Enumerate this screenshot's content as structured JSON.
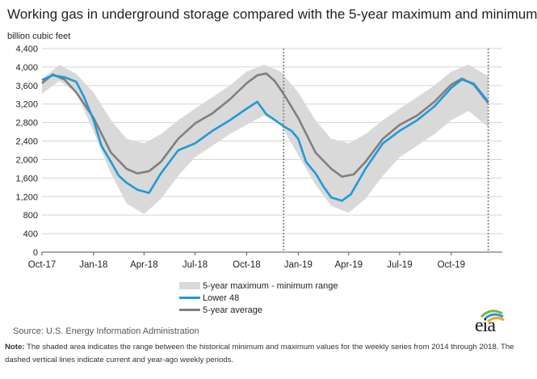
{
  "title": "Working gas in underground  storage compared with the 5-year maximum and minimum",
  "unit_label": "billion cubic feet",
  "source": "Source:  U.S. Energy Information Administration",
  "note_label": "Note:",
  "note_text": "The shaded area indicates the range between the historical minimum and maximum values for the weekly series from 2014 through 2018. The dashed vertical lines indicate current and year-ago weekly periods.",
  "logo_text": "eia",
  "colors": {
    "band": "#d9d9d9",
    "lower48": "#1f9ad6",
    "average": "#7f7f7f"
  },
  "chart_data": {
    "type": "area",
    "y_ticks": [
      "0",
      "400",
      "800",
      "1,200",
      "1,600",
      "2,000",
      "2,400",
      "2,800",
      "3,200",
      "3,600",
      "4,000",
      "4,400"
    ],
    "ylim": [
      0,
      4400
    ],
    "x_tick_labels": [
      "Oct-17",
      "Jan-18",
      "Apr-18",
      "Jul-18",
      "Oct-18",
      "Jan-19",
      "Apr-19",
      "Jul-19",
      "Oct-19"
    ],
    "x_tick_dates": [
      "2017-10-01",
      "2018-01-01",
      "2018-04-01",
      "2018-07-01",
      "2018-10-01",
      "2019-01-01",
      "2019-04-01",
      "2019-07-01",
      "2019-10-01"
    ],
    "xlim": [
      "2017-10-01",
      "2019-12-31"
    ],
    "dashed_lines": [
      "2018-12-06",
      "2019-12-06"
    ],
    "legend": [
      {
        "label": "5-year maximum - minimum range",
        "kind": "band"
      },
      {
        "label": "Lower 48",
        "kind": "line"
      },
      {
        "label": "5-year average",
        "kind": "line"
      }
    ],
    "range": {
      "dates": [
        "2017-10-01",
        "2017-11-01",
        "2017-12-01",
        "2018-01-01",
        "2018-02-01",
        "2018-03-01",
        "2018-04-01",
        "2018-05-01",
        "2018-06-01",
        "2018-07-01",
        "2018-08-01",
        "2018-09-01",
        "2018-10-01",
        "2018-11-01",
        "2018-12-01",
        "2019-01-01",
        "2019-02-01",
        "2019-03-01",
        "2019-04-01",
        "2019-05-01",
        "2019-06-01",
        "2019-07-01",
        "2019-08-01",
        "2019-09-01",
        "2019-10-01",
        "2019-11-01",
        "2019-12-06"
      ],
      "max": [
        3730,
        4050,
        3850,
        3450,
        2850,
        2450,
        2350,
        2550,
        2850,
        3100,
        3350,
        3600,
        3900,
        4050,
        3900,
        3450,
        2850,
        2450,
        2350,
        2550,
        2850,
        3100,
        3350,
        3600,
        3900,
        4050,
        3800
      ],
      "min": [
        3420,
        3700,
        3450,
        2600,
        1700,
        1050,
        820,
        1150,
        1650,
        2050,
        2300,
        2550,
        2750,
        2950,
        2750,
        2100,
        1450,
        1000,
        850,
        1150,
        1650,
        2050,
        2300,
        2550,
        2850,
        3050,
        2700
      ]
    },
    "series": [
      {
        "name": "Lower 48",
        "dates": [
          "2017-10-01",
          "2017-10-20",
          "2017-11-10",
          "2017-12-01",
          "2017-12-15",
          "2018-01-01",
          "2018-01-15",
          "2018-02-01",
          "2018-02-15",
          "2018-03-01",
          "2018-03-20",
          "2018-04-10",
          "2018-05-01",
          "2018-06-01",
          "2018-07-01",
          "2018-08-01",
          "2018-09-01",
          "2018-10-01",
          "2018-10-20",
          "2018-11-05",
          "2018-11-15",
          "2018-12-06",
          "2018-12-20",
          "2019-01-01",
          "2019-01-15",
          "2019-02-01",
          "2019-02-15",
          "2019-03-01",
          "2019-03-20",
          "2019-04-05",
          "2019-05-01",
          "2019-06-01",
          "2019-07-01",
          "2019-08-01",
          "2019-09-01",
          "2019-10-01",
          "2019-10-20",
          "2019-11-10",
          "2019-12-06"
        ],
        "values": [
          3720,
          3820,
          3780,
          3680,
          3350,
          2850,
          2300,
          1950,
          1650,
          1500,
          1350,
          1280,
          1700,
          2200,
          2350,
          2620,
          2850,
          3100,
          3250,
          2980,
          2900,
          2720,
          2620,
          2450,
          1950,
          1700,
          1420,
          1180,
          1110,
          1250,
          1800,
          2350,
          2620,
          2850,
          3150,
          3550,
          3730,
          3640,
          3250
        ]
      },
      {
        "name": "5-year average",
        "dates": [
          "2017-10-01",
          "2017-10-20",
          "2017-11-10",
          "2017-12-01",
          "2018-01-01",
          "2018-02-01",
          "2018-03-01",
          "2018-03-20",
          "2018-04-10",
          "2018-05-01",
          "2018-06-01",
          "2018-07-01",
          "2018-08-01",
          "2018-09-01",
          "2018-10-01",
          "2018-10-20",
          "2018-11-05",
          "2018-11-20",
          "2018-12-06",
          "2019-01-01",
          "2019-02-01",
          "2019-03-01",
          "2019-03-20",
          "2019-04-10",
          "2019-05-01",
          "2019-06-01",
          "2019-07-01",
          "2019-08-01",
          "2019-09-01",
          "2019-10-01",
          "2019-10-20",
          "2019-11-10",
          "2019-12-06"
        ],
        "values": [
          3650,
          3840,
          3730,
          3450,
          2900,
          2150,
          1800,
          1700,
          1750,
          1950,
          2450,
          2780,
          3000,
          3300,
          3650,
          3820,
          3860,
          3700,
          3420,
          2900,
          2150,
          1800,
          1630,
          1680,
          1950,
          2450,
          2750,
          2950,
          3250,
          3620,
          3750,
          3620,
          3220
        ]
      }
    ]
  }
}
